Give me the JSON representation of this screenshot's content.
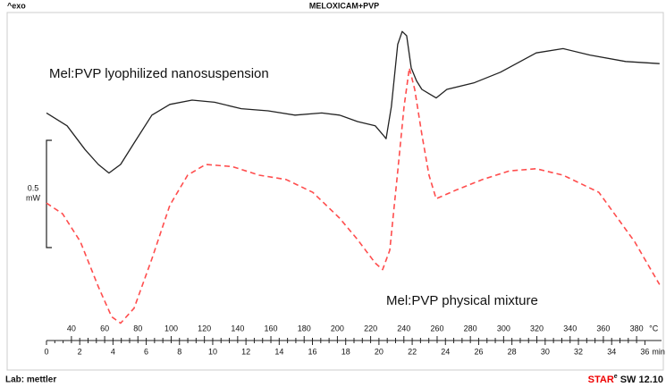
{
  "chart_data": {
    "type": "line",
    "title": "MELOXICAM+PVP",
    "y_label": "^exo",
    "scale_bar": {
      "value": 0.5,
      "unit": "mW"
    },
    "footer_left": "Lab: mettler",
    "footer_right": {
      "name": "STAR",
      "superscript": "e",
      "version": "SW 12.10"
    },
    "x_unit": "min",
    "x2_unit": "°C",
    "xlim": [
      0,
      37
    ],
    "xticks": [
      0,
      2,
      4,
      6,
      8,
      10,
      12,
      14,
      16,
      18,
      20,
      22,
      24,
      26,
      28,
      30,
      32,
      34,
      36
    ],
    "x2lim": [
      25,
      395
    ],
    "x2ticks": [
      40,
      60,
      80,
      100,
      120,
      140,
      160,
      180,
      200,
      220,
      240,
      260,
      280,
      300,
      320,
      340,
      360,
      380
    ],
    "ylim": [
      0,
      1.4
    ],
    "series": [
      {
        "name": "Mel:PVP lyophilized nanosuspension",
        "color": "#222222",
        "dash": false,
        "x": [
          0,
          1.24,
          2.31,
          3.12,
          3.76,
          4.46,
          5.27,
          6.34,
          7.42,
          8.76,
          10.11,
          11.72,
          13.33,
          14.95,
          16.56,
          17.63,
          18.71,
          19.78,
          20.22,
          20.43,
          20.75,
          21.13,
          21.4,
          21.67,
          21.94,
          22.26,
          22.58,
          23.01,
          23.44,
          24.09,
          25.7,
          27.31,
          29.46,
          31.08,
          32.69,
          34.84,
          36.88
        ],
        "values": [
          0.99,
          0.93,
          0.82,
          0.75,
          0.71,
          0.75,
          0.85,
          0.98,
          1.03,
          1.05,
          1.04,
          1.01,
          1.0,
          0.98,
          0.99,
          0.98,
          0.95,
          0.93,
          0.89,
          0.87,
          1.02,
          1.31,
          1.37,
          1.35,
          1.2,
          1.14,
          1.1,
          1.08,
          1.06,
          1.1,
          1.13,
          1.18,
          1.27,
          1.29,
          1.26,
          1.23,
          1.22
        ]
      },
      {
        "name": "Mel:PVP physical mixture",
        "color": "#ff4d4d",
        "dash": true,
        "x": [
          0,
          0.97,
          2.04,
          3.12,
          3.92,
          4.46,
          5.27,
          6.34,
          7.42,
          8.49,
          9.57,
          11.18,
          12.8,
          14.41,
          16.02,
          17.63,
          18.71,
          19.78,
          20.22,
          20.65,
          21.08,
          21.51,
          21.83,
          22.15,
          22.58,
          23.01,
          23.44,
          24.62,
          26.24,
          27.85,
          29.46,
          31.08,
          33.23,
          35.38,
          36.88
        ],
        "values": [
          0.57,
          0.52,
          0.39,
          0.18,
          0.04,
          0.01,
          0.08,
          0.31,
          0.56,
          0.7,
          0.75,
          0.74,
          0.7,
          0.68,
          0.62,
          0.5,
          0.4,
          0.29,
          0.26,
          0.35,
          0.68,
          1.02,
          1.2,
          1.1,
          0.89,
          0.7,
          0.59,
          0.63,
          0.68,
          0.72,
          0.73,
          0.7,
          0.62,
          0.39,
          0.19
        ]
      }
    ]
  }
}
